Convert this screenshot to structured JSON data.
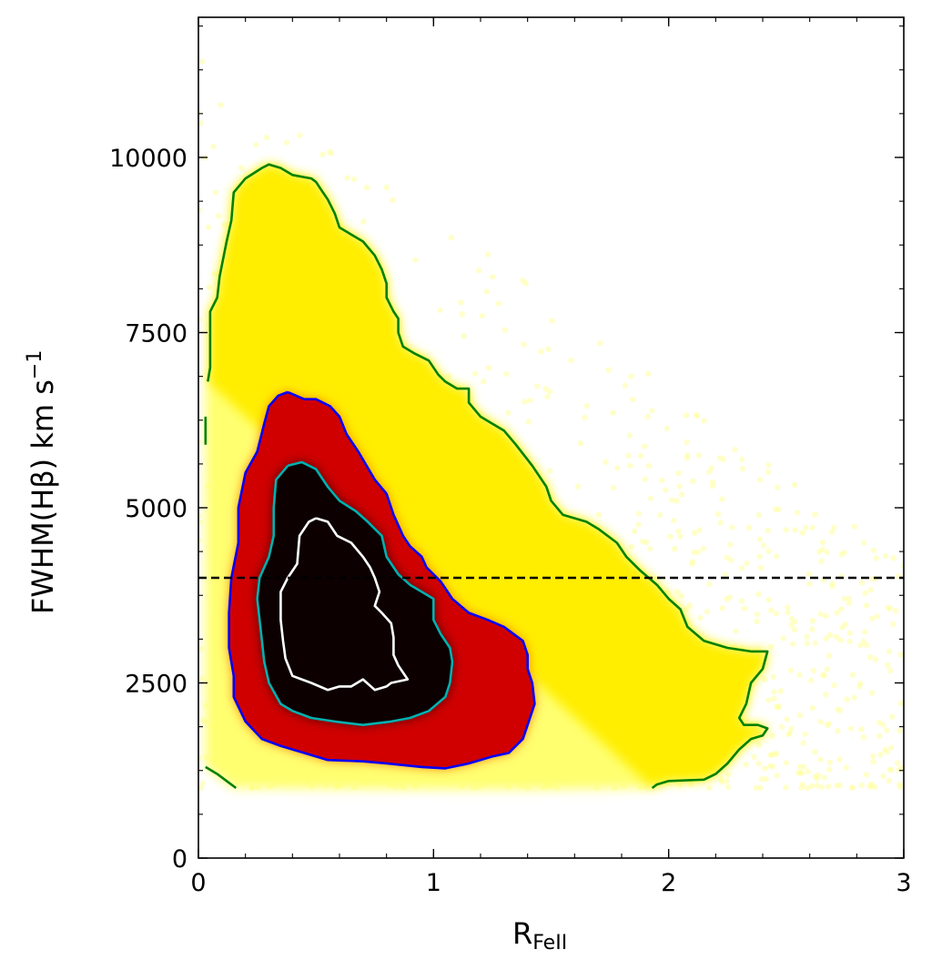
{
  "chart_data": {
    "type": "scatter",
    "xlabel": "R",
    "xlabel_sub": "FeII",
    "ylabel": "FWHM(Hβ) km s",
    "ylabel_sup": "−1",
    "xlim": [
      0,
      3
    ],
    "ylim": [
      0,
      12000
    ],
    "x_ticks": [
      0,
      1,
      2,
      3
    ],
    "x_tick_labels": [
      "0",
      "1",
      "2",
      "3"
    ],
    "x_minor_step": 0.2,
    "y_ticks": [
      0,
      2500,
      5000,
      7500,
      10000
    ],
    "y_tick_labels": [
      "0",
      "2500",
      "5000",
      "7500",
      "10000"
    ],
    "y_minor_step": 625,
    "grid": false,
    "colormap": "hot (density)",
    "density_peak": [
      0.55,
      3600
    ],
    "reference_line": {
      "y": 4000,
      "style": "dashed",
      "color": "#000000"
    },
    "contours": [
      {
        "color": "#008000",
        "points": [
          [
            0.04,
            6800
          ],
          [
            0.05,
            7000
          ],
          [
            0.05,
            7800
          ],
          [
            0.08,
            8000
          ],
          [
            0.09,
            8300
          ],
          [
            0.12,
            8800
          ],
          [
            0.14,
            9100
          ],
          [
            0.15,
            9500
          ],
          [
            0.2,
            9700
          ],
          [
            0.27,
            9850
          ],
          [
            0.3,
            9900
          ],
          [
            0.35,
            9850
          ],
          [
            0.4,
            9750
          ],
          [
            0.48,
            9700
          ],
          [
            0.5,
            9650
          ],
          [
            0.52,
            9550
          ],
          [
            0.55,
            9400
          ],
          [
            0.58,
            9200
          ],
          [
            0.6,
            9000
          ],
          [
            0.65,
            8900
          ],
          [
            0.7,
            8800
          ],
          [
            0.75,
            8600
          ],
          [
            0.78,
            8400
          ],
          [
            0.8,
            8200
          ],
          [
            0.8,
            8000
          ],
          [
            0.83,
            7800
          ],
          [
            0.85,
            7700
          ],
          [
            0.85,
            7500
          ],
          [
            0.87,
            7300
          ],
          [
            0.92,
            7200
          ],
          [
            0.98,
            7100
          ],
          [
            1.02,
            6900
          ],
          [
            1.05,
            6800
          ],
          [
            1.1,
            6700
          ],
          [
            1.15,
            6700
          ],
          [
            1.15,
            6500
          ],
          [
            1.2,
            6300
          ],
          [
            1.25,
            6200
          ],
          [
            1.3,
            6100
          ],
          [
            1.35,
            5900
          ],
          [
            1.42,
            5600
          ],
          [
            1.48,
            5300
          ],
          [
            1.5,
            5100
          ],
          [
            1.55,
            4900
          ],
          [
            1.65,
            4800
          ],
          [
            1.7,
            4700
          ],
          [
            1.78,
            4500
          ],
          [
            1.82,
            4300
          ],
          [
            1.88,
            4100
          ],
          [
            1.95,
            3900
          ],
          [
            2.0,
            3700
          ],
          [
            2.05,
            3550
          ],
          [
            2.08,
            3300
          ],
          [
            2.15,
            3100
          ],
          [
            2.25,
            3000
          ],
          [
            2.35,
            2950
          ],
          [
            2.42,
            2950
          ],
          [
            2.4,
            2700
          ],
          [
            2.35,
            2500
          ],
          [
            2.33,
            2200
          ],
          [
            2.3,
            2000
          ],
          [
            2.32,
            1900
          ],
          [
            2.38,
            1900
          ],
          [
            2.42,
            1850
          ],
          [
            2.4,
            1750
          ],
          [
            2.35,
            1700
          ],
          [
            2.3,
            1550
          ],
          [
            2.25,
            1350
          ],
          [
            2.2,
            1200
          ],
          [
            2.15,
            1120
          ],
          [
            2.0,
            1100
          ],
          [
            1.95,
            1050
          ],
          [
            1.93,
            1000
          ]
        ]
      },
      {
        "color": "#008000",
        "points": [
          [
            0.03,
            1300
          ],
          [
            0.08,
            1200
          ],
          [
            0.12,
            1100
          ],
          [
            0.16,
            1000
          ]
        ]
      },
      {
        "color": "#008000",
        "points": [
          [
            0.03,
            6300
          ],
          [
            0.03,
            6100
          ],
          [
            0.03,
            5900
          ]
        ]
      },
      {
        "color": "#0000ff",
        "points": [
          [
            0.38,
            6650
          ],
          [
            0.45,
            6550
          ],
          [
            0.5,
            6550
          ],
          [
            0.56,
            6450
          ],
          [
            0.6,
            6300
          ],
          [
            0.63,
            6050
          ],
          [
            0.68,
            5800
          ],
          [
            0.75,
            5400
          ],
          [
            0.8,
            5200
          ],
          [
            0.83,
            4900
          ],
          [
            0.87,
            4600
          ],
          [
            0.9,
            4450
          ],
          [
            0.95,
            4300
          ],
          [
            0.97,
            4150
          ],
          [
            1.03,
            3950
          ],
          [
            1.08,
            3700
          ],
          [
            1.15,
            3500
          ],
          [
            1.23,
            3400
          ],
          [
            1.3,
            3300
          ],
          [
            1.38,
            3100
          ],
          [
            1.4,
            2900
          ],
          [
            1.4,
            2700
          ],
          [
            1.42,
            2500
          ],
          [
            1.43,
            2200
          ],
          [
            1.4,
            1900
          ],
          [
            1.38,
            1700
          ],
          [
            1.32,
            1500
          ],
          [
            1.25,
            1450
          ],
          [
            1.15,
            1350
          ],
          [
            1.05,
            1280
          ],
          [
            0.95,
            1300
          ],
          [
            0.8,
            1350
          ],
          [
            0.7,
            1380
          ],
          [
            0.55,
            1400
          ],
          [
            0.45,
            1500
          ],
          [
            0.35,
            1600
          ],
          [
            0.27,
            1700
          ],
          [
            0.2,
            1950
          ],
          [
            0.15,
            2300
          ],
          [
            0.15,
            2600
          ],
          [
            0.13,
            3000
          ],
          [
            0.13,
            3500
          ],
          [
            0.14,
            4000
          ],
          [
            0.17,
            4500
          ],
          [
            0.17,
            5000
          ],
          [
            0.2,
            5500
          ],
          [
            0.25,
            5800
          ],
          [
            0.28,
            6200
          ],
          [
            0.3,
            6450
          ],
          [
            0.34,
            6600
          ],
          [
            0.38,
            6650
          ]
        ]
      },
      {
        "color": "#00b0b0",
        "points": [
          [
            0.38,
            5600
          ],
          [
            0.44,
            5650
          ],
          [
            0.5,
            5550
          ],
          [
            0.55,
            5300
          ],
          [
            0.6,
            5100
          ],
          [
            0.67,
            4950
          ],
          [
            0.72,
            4800
          ],
          [
            0.78,
            4600
          ],
          [
            0.8,
            4300
          ],
          [
            0.85,
            4050
          ],
          [
            0.9,
            3900
          ],
          [
            0.95,
            3800
          ],
          [
            1.0,
            3700
          ],
          [
            1.0,
            3500
          ],
          [
            1.0,
            3400
          ],
          [
            1.03,
            3200
          ],
          [
            1.07,
            3000
          ],
          [
            1.08,
            2800
          ],
          [
            1.07,
            2500
          ],
          [
            1.05,
            2300
          ],
          [
            0.98,
            2100
          ],
          [
            0.9,
            2000
          ],
          [
            0.82,
            1950
          ],
          [
            0.7,
            1900
          ],
          [
            0.58,
            1950
          ],
          [
            0.48,
            2000
          ],
          [
            0.4,
            2100
          ],
          [
            0.35,
            2200
          ],
          [
            0.3,
            2500
          ],
          [
            0.28,
            2800
          ],
          [
            0.27,
            3100
          ],
          [
            0.26,
            3400
          ],
          [
            0.25,
            3700
          ],
          [
            0.26,
            4000
          ],
          [
            0.3,
            4300
          ],
          [
            0.32,
            4600
          ],
          [
            0.32,
            5000
          ],
          [
            0.33,
            5400
          ],
          [
            0.38,
            5600
          ]
        ]
      },
      {
        "color": "#ffffff",
        "points": [
          [
            0.5,
            4850
          ],
          [
            0.55,
            4800
          ],
          [
            0.59,
            4600
          ],
          [
            0.65,
            4500
          ],
          [
            0.7,
            4300
          ],
          [
            0.73,
            4150
          ],
          [
            0.75,
            4000
          ],
          [
            0.77,
            3800
          ],
          [
            0.75,
            3600
          ],
          [
            0.78,
            3500
          ],
          [
            0.82,
            3350
          ],
          [
            0.83,
            3150
          ],
          [
            0.83,
            2900
          ],
          [
            0.85,
            2750
          ],
          [
            0.89,
            2550
          ],
          [
            0.82,
            2500
          ],
          [
            0.8,
            2450
          ],
          [
            0.75,
            2400
          ],
          [
            0.7,
            2550
          ],
          [
            0.65,
            2450
          ],
          [
            0.6,
            2450
          ],
          [
            0.55,
            2400
          ],
          [
            0.48,
            2500
          ],
          [
            0.4,
            2600
          ],
          [
            0.37,
            2850
          ],
          [
            0.36,
            3100
          ],
          [
            0.35,
            3400
          ],
          [
            0.35,
            3800
          ],
          [
            0.38,
            4000
          ],
          [
            0.42,
            4200
          ],
          [
            0.43,
            4600
          ],
          [
            0.47,
            4800
          ],
          [
            0.5,
            4850
          ]
        ]
      }
    ]
  }
}
